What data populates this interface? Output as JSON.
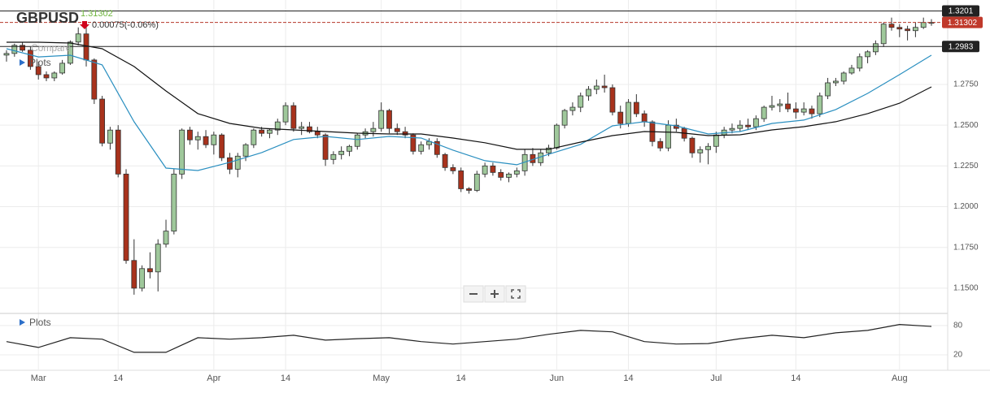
{
  "chart_data": [
    {
      "type": "candlestick",
      "title": "GBPUSD",
      "last": 1.31302,
      "change": "0.00075(-0.06%)",
      "compare_label": "Compare",
      "plots_label": "Plots",
      "categories": [
        null,
        null,
        null,
        null,
        "Mar",
        null,
        null,
        null,
        null,
        null,
        null,
        null,
        null,
        null,
        "14",
        null,
        null,
        null,
        null,
        null,
        null,
        null,
        null,
        null,
        null,
        null,
        "Apr",
        null,
        null,
        null,
        null,
        null,
        null,
        null,
        null,
        "14",
        null,
        null,
        null,
        null,
        null,
        null,
        null,
        null,
        null,
        null,
        null,
        "May",
        null,
        null,
        null,
        null,
        null,
        null,
        null,
        null,
        null,
        "14",
        null,
        null,
        null,
        null,
        null,
        null,
        null,
        null,
        null,
        null,
        null,
        "Jun",
        null,
        null,
        null,
        null,
        null,
        null,
        null,
        null,
        "14",
        null,
        null,
        null,
        null,
        null,
        null,
        null,
        null,
        null,
        null,
        "Jul",
        null,
        null,
        null,
        null,
        null,
        null,
        null,
        null,
        null,
        "14",
        null,
        null,
        null,
        null,
        null,
        null,
        null,
        null,
        null,
        null,
        null,
        null,
        "Aug",
        null,
        null,
        null,
        null
      ],
      "open": [
        1.293,
        1.294,
        1.299,
        1.296,
        1.286,
        1.281,
        1.279,
        1.282,
        1.288,
        1.301,
        1.306,
        1.29,
        1.266,
        1.239,
        1.247,
        1.22,
        1.167,
        1.15,
        1.162,
        1.16,
        1.177,
        1.185,
        1.22,
        1.247,
        1.241,
        1.243,
        1.238,
        1.244,
        1.23,
        1.223,
        1.231,
        1.238,
        1.247,
        1.245,
        1.247,
        1.252,
        1.262,
        1.248,
        1.249,
        1.246,
        1.244,
        1.229,
        1.232,
        1.234,
        1.237,
        1.244,
        1.246,
        1.248,
        1.259,
        1.248,
        1.246,
        1.244,
        1.234,
        1.238,
        1.24,
        1.232,
        1.224,
        1.222,
        1.211,
        1.21,
        1.22,
        1.225,
        1.221,
        1.218,
        1.22,
        1.222,
        1.232,
        1.227,
        1.233,
        1.236,
        1.25,
        1.259,
        1.261,
        1.268,
        1.272,
        1.274,
        1.273,
        1.258,
        1.251,
        1.264,
        1.257,
        1.252,
        1.24,
        1.236,
        1.25,
        1.248,
        1.242,
        1.233,
        1.235,
        1.237,
        1.244,
        1.247,
        1.248,
        1.25,
        1.249,
        1.254,
        1.261,
        1.262,
        1.263,
        1.26,
        1.258,
        1.26,
        1.257,
        1.268,
        1.276,
        1.277,
        1.282,
        1.285,
        1.292,
        1.295,
        1.3,
        1.312,
        1.31,
        1.309,
        1.308,
        1.31,
        1.313
      ],
      "high": [
        1.296,
        1.3,
        1.301,
        1.298,
        1.289,
        1.283,
        1.283,
        1.29,
        1.302,
        1.31,
        1.311,
        1.291,
        1.268,
        1.249,
        1.25,
        1.223,
        1.18,
        1.164,
        1.172,
        1.18,
        1.192,
        1.223,
        1.248,
        1.249,
        1.246,
        1.247,
        1.246,
        1.245,
        1.233,
        1.233,
        1.239,
        1.248,
        1.249,
        1.248,
        1.254,
        1.264,
        1.264,
        1.252,
        1.252,
        1.249,
        1.245,
        1.234,
        1.237,
        1.238,
        1.245,
        1.248,
        1.252,
        1.264,
        1.26,
        1.251,
        1.249,
        1.245,
        1.24,
        1.242,
        1.242,
        1.233,
        1.226,
        1.224,
        1.212,
        1.222,
        1.227,
        1.227,
        1.223,
        1.221,
        1.224,
        1.235,
        1.236,
        1.235,
        1.238,
        1.251,
        1.26,
        1.264,
        1.27,
        1.274,
        1.278,
        1.281,
        1.275,
        1.262,
        1.266,
        1.269,
        1.259,
        1.253,
        1.242,
        1.253,
        1.254,
        1.249,
        1.243,
        1.237,
        1.239,
        1.246,
        1.249,
        1.251,
        1.253,
        1.254,
        1.256,
        1.262,
        1.268,
        1.266,
        1.27,
        1.264,
        1.264,
        1.262,
        1.27,
        1.279,
        1.279,
        1.283,
        1.287,
        1.294,
        1.296,
        1.302,
        1.313,
        1.316,
        1.312,
        1.311,
        1.313,
        1.316,
        1.315
      ],
      "low": [
        1.289,
        1.292,
        1.295,
        1.284,
        1.278,
        1.277,
        1.277,
        1.281,
        1.287,
        1.299,
        1.286,
        1.263,
        1.237,
        1.235,
        1.218,
        1.165,
        1.146,
        1.148,
        1.156,
        1.148,
        1.175,
        1.183,
        1.217,
        1.238,
        1.235,
        1.236,
        1.232,
        1.228,
        1.22,
        1.218,
        1.228,
        1.236,
        1.243,
        1.242,
        1.244,
        1.25,
        1.246,
        1.244,
        1.245,
        1.242,
        1.225,
        1.226,
        1.229,
        1.231,
        1.235,
        1.242,
        1.243,
        1.246,
        1.245,
        1.244,
        1.242,
        1.232,
        1.232,
        1.235,
        1.23,
        1.222,
        1.22,
        1.209,
        1.208,
        1.209,
        1.218,
        1.219,
        1.216,
        1.215,
        1.218,
        1.219,
        1.225,
        1.225,
        1.231,
        1.235,
        1.248,
        1.256,
        1.258,
        1.265,
        1.269,
        1.27,
        1.256,
        1.248,
        1.249,
        1.255,
        1.249,
        1.237,
        1.234,
        1.234,
        1.246,
        1.24,
        1.23,
        1.227,
        1.226,
        1.233,
        1.242,
        1.245,
        1.246,
        1.247,
        1.247,
        1.252,
        1.259,
        1.258,
        1.258,
        1.254,
        1.256,
        1.254,
        1.255,
        1.266,
        1.274,
        1.275,
        1.281,
        1.283,
        1.288,
        1.293,
        1.298,
        1.308,
        1.304,
        1.302,
        1.304,
        1.309,
        1.311
      ],
      "close": [
        1.294,
        1.299,
        1.296,
        1.286,
        1.281,
        1.279,
        1.282,
        1.288,
        1.301,
        1.306,
        1.29,
        1.266,
        1.239,
        1.247,
        1.22,
        1.167,
        1.15,
        1.162,
        1.16,
        1.177,
        1.185,
        1.22,
        1.247,
        1.241,
        1.243,
        1.238,
        1.244,
        1.23,
        1.223,
        1.231,
        1.238,
        1.247,
        1.245,
        1.247,
        1.252,
        1.262,
        1.248,
        1.249,
        1.246,
        1.244,
        1.229,
        1.232,
        1.234,
        1.237,
        1.244,
        1.246,
        1.248,
        1.259,
        1.248,
        1.246,
        1.244,
        1.234,
        1.238,
        1.24,
        1.232,
        1.224,
        1.222,
        1.211,
        1.21,
        1.22,
        1.225,
        1.221,
        1.218,
        1.22,
        1.222,
        1.232,
        1.227,
        1.233,
        1.236,
        1.25,
        1.259,
        1.261,
        1.268,
        1.272,
        1.274,
        1.273,
        1.258,
        1.251,
        1.264,
        1.257,
        1.252,
        1.24,
        1.236,
        1.25,
        1.248,
        1.242,
        1.233,
        1.235,
        1.237,
        1.244,
        1.247,
        1.248,
        1.25,
        1.249,
        1.254,
        1.261,
        1.262,
        1.263,
        1.26,
        1.258,
        1.26,
        1.257,
        1.268,
        1.276,
        1.277,
        1.282,
        1.285,
        1.292,
        1.295,
        1.3,
        1.312,
        1.31,
        1.309,
        1.308,
        1.31,
        1.313,
        1.313
      ],
      "up_color": "#9fc89b",
      "down_color": "#a8321c",
      "overlays": [
        {
          "color": "#2a8fc0",
          "x": [
            0,
            4,
            8,
            12,
            16,
            20,
            24,
            28,
            32,
            36,
            40,
            44,
            48,
            52,
            56,
            60,
            64,
            68,
            72,
            76,
            80,
            84,
            88,
            92,
            96,
            100,
            104,
            108,
            112,
            116
          ],
          "values": [
            1.2969,
            1.2919,
            1.2929,
            1.287,
            1.2521,
            1.2237,
            1.2222,
            1.2272,
            1.2332,
            1.2412,
            1.2431,
            1.2412,
            1.2431,
            1.2421,
            1.2347,
            1.2282,
            1.2257,
            1.2322,
            1.2382,
            1.2496,
            1.2521,
            1.2496,
            1.2446,
            1.2461,
            1.2511,
            1.2531,
            1.2596,
            1.2695,
            1.281,
            1.2929
          ]
        },
        {
          "color": "#111111",
          "x": [
            0,
            4,
            8,
            12,
            16,
            20,
            24,
            28,
            32,
            36,
            40,
            44,
            48,
            52,
            56,
            60,
            64,
            68,
            72,
            76,
            80,
            84,
            88,
            92,
            96,
            100,
            104,
            108,
            112,
            116
          ],
          "values": [
            1.3009,
            1.3009,
            1.3004,
            1.2969,
            1.286,
            1.271,
            1.2571,
            1.2511,
            1.2481,
            1.2471,
            1.2461,
            1.2451,
            1.2446,
            1.2446,
            1.2421,
            1.2392,
            1.2352,
            1.2352,
            1.2396,
            1.2436,
            1.2461,
            1.2456,
            1.2436,
            1.2441,
            1.2471,
            1.2491,
            1.2521,
            1.2571,
            1.2635,
            1.2735
          ]
        }
      ],
      "levels": [
        1.3201,
        1.2983
      ],
      "ylim": [
        1.135,
        1.3268
      ],
      "yticks": [
        {
          "value": 1.15,
          "label": "1.1500"
        },
        {
          "value": 1.175,
          "label": "1.1750"
        },
        {
          "value": 1.2,
          "label": "1.2000"
        },
        {
          "value": 1.225,
          "label": "1.2250"
        },
        {
          "value": 1.25,
          "label": "1.2500"
        },
        {
          "value": 1.275,
          "label": "1.2750"
        }
      ],
      "grid": true
    },
    {
      "type": "line",
      "plots_label": "Plots",
      "color": "#222222",
      "x": [
        0,
        4,
        8,
        12,
        16,
        20,
        24,
        28,
        32,
        36,
        40,
        44,
        48,
        52,
        56,
        60,
        64,
        68,
        72,
        76,
        80,
        84,
        88,
        92,
        96,
        100,
        104,
        108,
        112,
        116
      ],
      "values": [
        47,
        35,
        55,
        52,
        25,
        25,
        55,
        52,
        55,
        60,
        50,
        53,
        55,
        47,
        42,
        47,
        52,
        62,
        70,
        67,
        47,
        42,
        43,
        53,
        60,
        55,
        65,
        70,
        82,
        78
      ],
      "ylim": [
        -10,
        103
      ],
      "yticks": [
        20,
        80
      ],
      "grid": true
    }
  ]
}
